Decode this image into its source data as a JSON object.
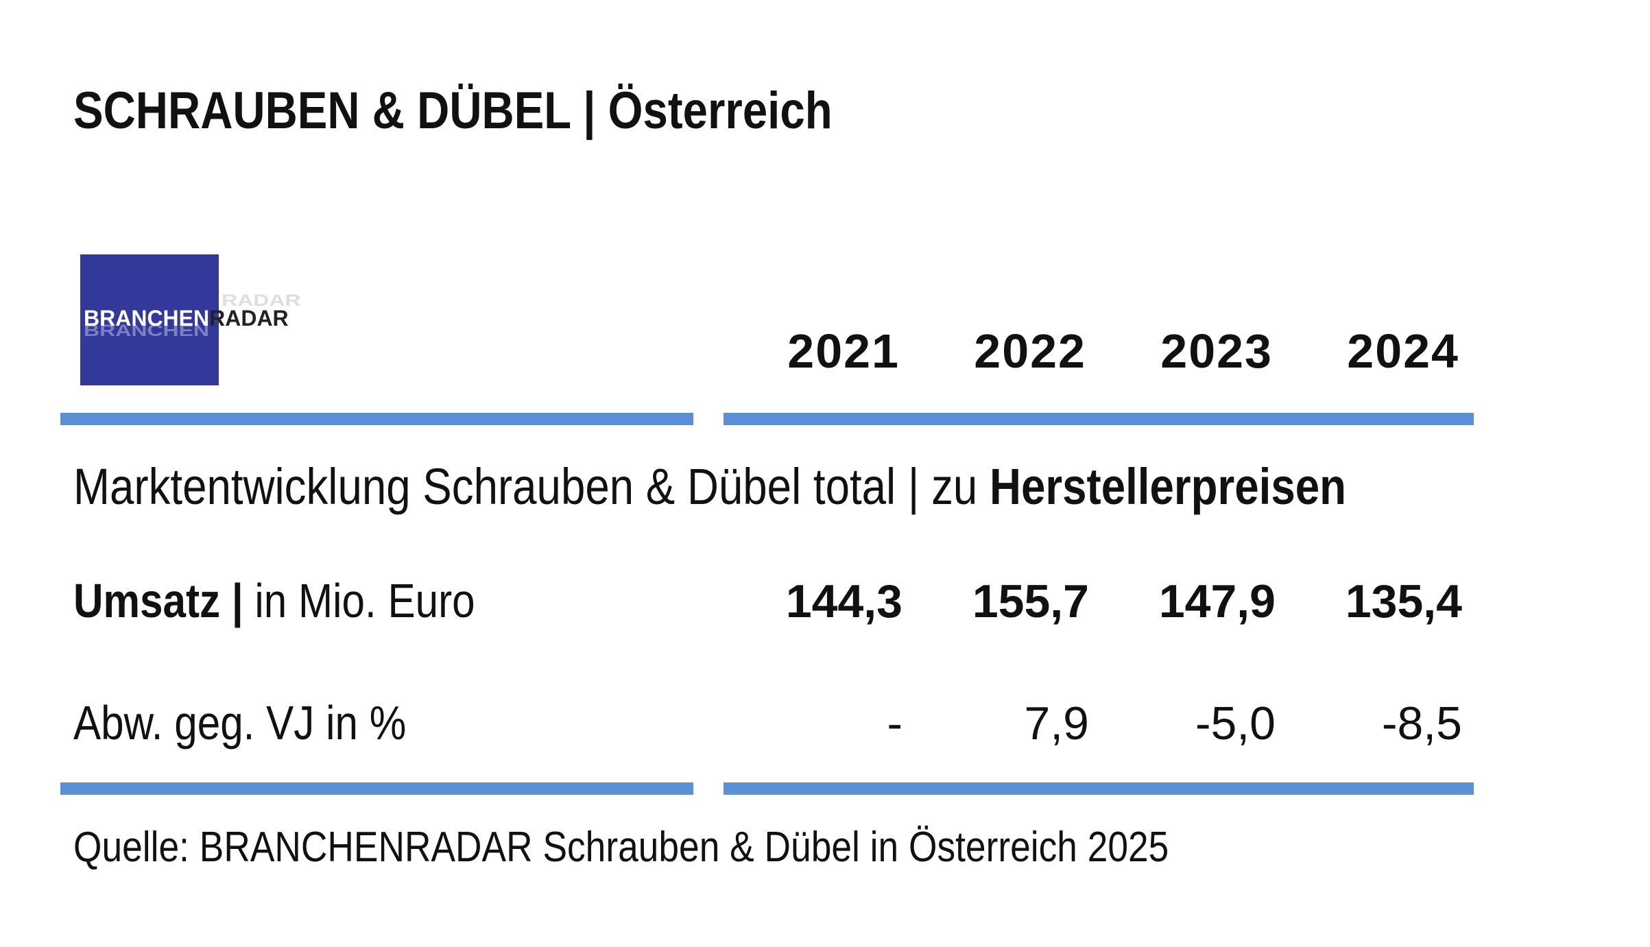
{
  "title": "SCHRAUBEN & DÜBEL | Österreich",
  "logo": {
    "part1": "BRANCHEN",
    "part2": "RADAR",
    "background_color": "#33399a"
  },
  "table": {
    "years": [
      "2021",
      "2022",
      "2023",
      "2024"
    ],
    "subtitle_regular": "Marktentwicklung Schrauben & Dübel total | zu ",
    "subtitle_bold": "Herstellerpreisen",
    "rows": [
      {
        "label_bold": "Umsatz |",
        "label_regular": " in Mio. Euro",
        "values": [
          "144,3",
          "155,7",
          "147,9",
          "135,4"
        ]
      },
      {
        "label_bold": "",
        "label_regular": "Abw. geg. VJ in %",
        "values": [
          "-",
          "7,9",
          "-5,0",
          "-8,5"
        ]
      }
    ],
    "rule_color": "#5b8fd6"
  },
  "source": "Quelle: BRANCHENRADAR Schrauben & Dübel in Österreich 2025"
}
